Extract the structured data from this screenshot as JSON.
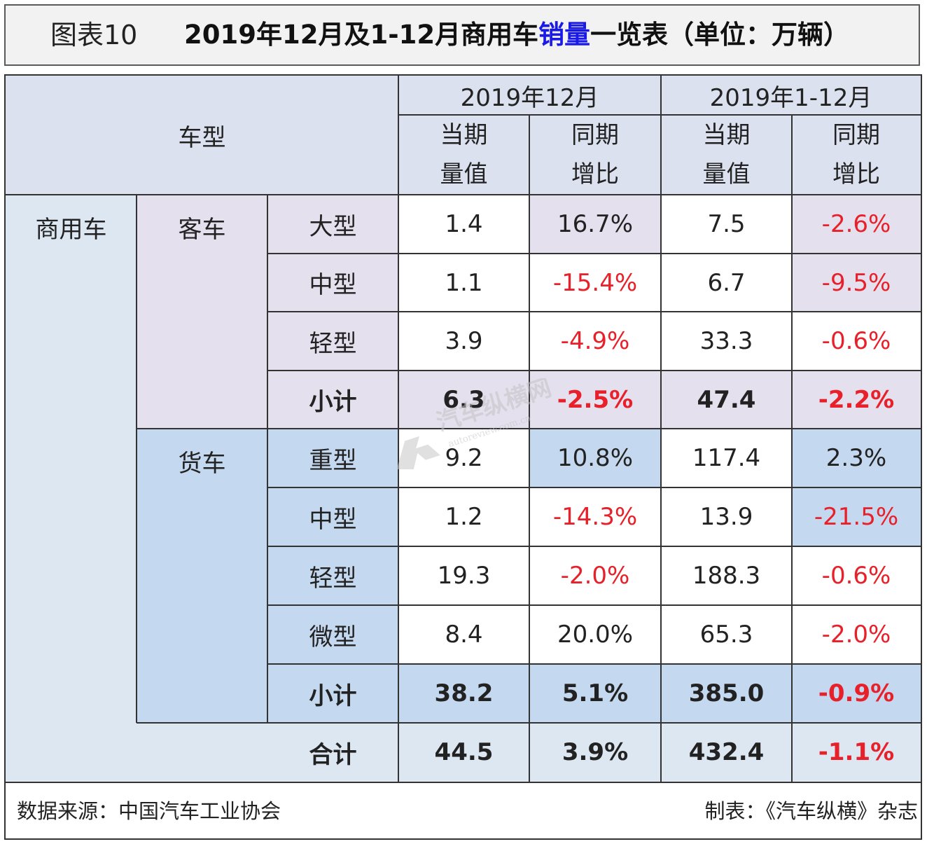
{
  "title": {
    "label": "图表10",
    "text_pre": "2019年12月及1-12月商用车",
    "text_hl": "销量",
    "text_post": "一览表（单位：万辆）"
  },
  "header": {
    "vehicle_type": "车型",
    "period_dec": "2019年12月",
    "period_year": "2019年1-12月",
    "col_current_1": "当期",
    "col_current_2": "量值",
    "col_yoy_1": "同期",
    "col_yoy_2": "增比"
  },
  "groups": {
    "commercial": "商用车",
    "bus": "客车",
    "truck": "货车"
  },
  "rows": [
    {
      "label": "大型",
      "dec_value": "1.4",
      "dec_yoy": "16.7%",
      "year_value": "7.5",
      "year_yoy": "-2.6%"
    },
    {
      "label": "中型",
      "dec_value": "1.1",
      "dec_yoy": "-15.4%",
      "year_value": "6.7",
      "year_yoy": "-9.5%"
    },
    {
      "label": "轻型",
      "dec_value": "3.9",
      "dec_yoy": "-4.9%",
      "year_value": "33.3",
      "year_yoy": "-0.6%"
    },
    {
      "label": "小计",
      "dec_value": "6.3",
      "dec_yoy": "-2.5%",
      "year_value": "47.4",
      "year_yoy": "-2.2%"
    },
    {
      "label": "重型",
      "dec_value": "9.2",
      "dec_yoy": "10.8%",
      "year_value": "117.4",
      "year_yoy": "2.3%"
    },
    {
      "label": "中型",
      "dec_value": "1.2",
      "dec_yoy": "-14.3%",
      "year_value": "13.9",
      "year_yoy": "-21.5%"
    },
    {
      "label": "轻型",
      "dec_value": "19.3",
      "dec_yoy": "-2.0%",
      "year_value": "188.3",
      "year_yoy": "-0.6%"
    },
    {
      "label": "微型",
      "dec_value": "8.4",
      "dec_yoy": "20.0%",
      "year_value": "65.3",
      "year_yoy": "-2.0%"
    },
    {
      "label": "小计",
      "dec_value": "38.2",
      "dec_yoy": "5.1%",
      "year_value": "385.0",
      "year_yoy": "-0.9%"
    },
    {
      "label": "合计",
      "dec_value": "44.5",
      "dec_yoy": "3.9%",
      "year_value": "432.4",
      "year_yoy": "-1.1%"
    }
  ],
  "footer": {
    "source": "数据来源：中国汽车工业协会",
    "maker": "制表：《汽车纵横》杂志"
  },
  "watermark": {
    "name": "汽车纵横网",
    "url": "autoreview.com.cn"
  },
  "colors": {
    "negative": "#e8202a",
    "highlight": "#1a1ae6",
    "header_bg": "#dbe1ef",
    "bus_bg": "#e4e0ee",
    "truck_bg": "#c4d8ef"
  }
}
